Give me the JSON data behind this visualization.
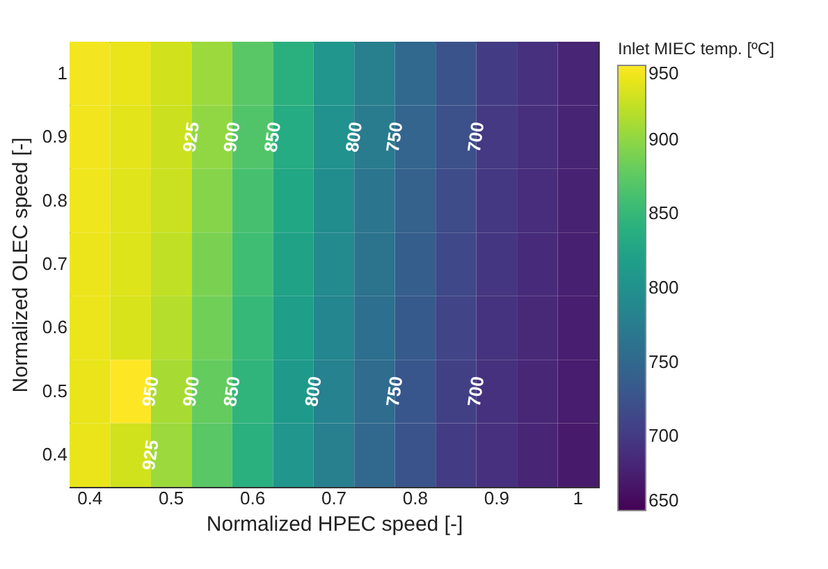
{
  "chart_data": {
    "type": "heatmap",
    "xlabel": "Normalized HPEC speed [-]",
    "ylabel": "Normalized OLEC speed [-]",
    "clabel": "Inlet MIEC temp. [ºC]",
    "categories": [
      "0.4",
      null,
      "0.5",
      null,
      "0.6",
      null,
      "0.7",
      null,
      "0.8",
      null,
      "0.9",
      null,
      "1"
    ],
    "y_categories": [
      "1",
      "0.9",
      "0.8",
      "0.7",
      "0.6",
      "0.5",
      "0.4"
    ],
    "cells": [
      [
        945,
        940,
        929,
        906,
        873,
        840,
        807,
        778,
        750,
        726,
        702,
        691,
        680
      ],
      [
        944,
        938,
        927,
        901,
        868,
        835,
        801,
        773,
        746,
        722,
        699,
        690,
        679
      ],
      [
        943,
        936,
        926,
        895,
        862,
        829,
        796,
        768,
        742,
        718,
        698,
        688,
        677
      ],
      [
        942,
        935,
        922,
        890,
        857,
        823,
        792,
        764,
        738,
        714,
        696,
        686,
        675
      ],
      [
        941,
        933,
        917,
        885,
        851,
        818,
        787,
        759,
        734,
        710,
        694,
        684,
        674
      ],
      [
        940,
        950,
        911,
        879,
        845,
        812,
        782,
        755,
        730,
        706,
        692,
        682,
        672
      ],
      [
        940,
        929,
        906,
        873,
        840,
        807,
        778,
        750,
        726,
        702,
        691,
        680,
        670
      ]
    ],
    "clim": [
      650,
      950
    ],
    "cticks": [
      650,
      700,
      750,
      800,
      850,
      900,
      950
    ],
    "annotations": [
      "925",
      "900",
      "850",
      "800",
      "750",
      "700",
      "950",
      "925",
      "900",
      "850",
      "800",
      "750",
      "700"
    ]
  }
}
